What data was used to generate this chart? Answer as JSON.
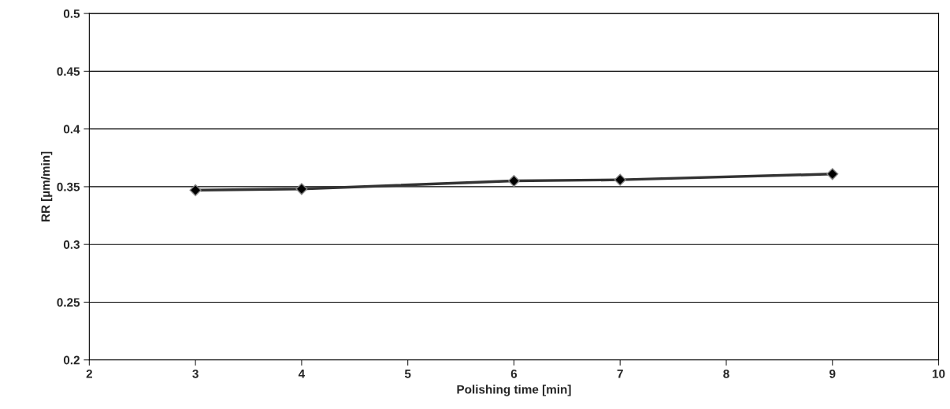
{
  "chart_data": {
    "type": "line",
    "xlabel": "Polishing time [min]",
    "ylabel": "RR [µm/min]",
    "x": [
      3,
      4,
      6,
      7,
      9
    ],
    "series": [
      {
        "color": "#333333",
        "values": [
          0.347,
          0.348,
          0.355,
          0.356,
          0.361
        ]
      }
    ],
    "xlim": [
      2,
      10
    ],
    "xticks": [
      2,
      3,
      4,
      5,
      6,
      7,
      8,
      9,
      10
    ],
    "ylim": [
      0.2,
      0.5
    ],
    "yticks": [
      0.2,
      0.25,
      0.3,
      0.35,
      0.4,
      0.45,
      0.5
    ],
    "grid": "y",
    "marker": "diamond",
    "line_style": "solid",
    "legend": false
  }
}
